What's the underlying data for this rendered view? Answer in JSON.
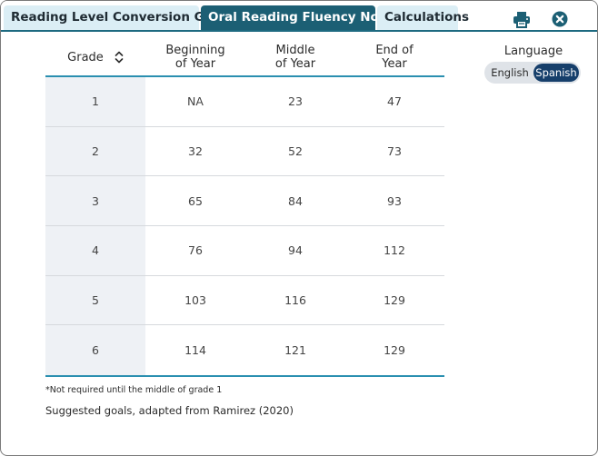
{
  "tabs": [
    {
      "label": "Reading Level Conversion Guide",
      "active": false
    },
    {
      "label": "Oral Reading Fluency Norms",
      "active": true
    },
    {
      "label": "Calculations",
      "active": false
    }
  ],
  "toolbar": {
    "print_icon": "printer-icon",
    "close_icon": "close-circle-icon"
  },
  "table": {
    "headers": {
      "grade": "Grade",
      "boy": [
        "Beginning",
        "of Year"
      ],
      "moy": [
        "Middle",
        "of Year"
      ],
      "eoy": [
        "End of",
        "Year"
      ]
    },
    "rows": [
      {
        "grade": "1",
        "boy": "NA",
        "moy": "23",
        "eoy": "47"
      },
      {
        "grade": "2",
        "boy": "32",
        "moy": "52",
        "eoy": "73"
      },
      {
        "grade": "3",
        "boy": "65",
        "moy": "84",
        "eoy": "93"
      },
      {
        "grade": "4",
        "boy": "76",
        "moy": "94",
        "eoy": "112"
      },
      {
        "grade": "5",
        "boy": "103",
        "moy": "116",
        "eoy": "129"
      },
      {
        "grade": "6",
        "boy": "114",
        "moy": "121",
        "eoy": "129"
      }
    ]
  },
  "footnote": "*Not required until the middle of grade 1",
  "source": "Suggested goals, adapted from Ramirez (2020)",
  "language": {
    "label": "Language",
    "options": [
      "English",
      "Spanish"
    ],
    "selected": "Spanish"
  },
  "colors": {
    "accent": "#1c5f74",
    "tab_inactive": "#dbeef5",
    "toggle_active": "#163f6b",
    "rule": "#2a8fb0"
  }
}
